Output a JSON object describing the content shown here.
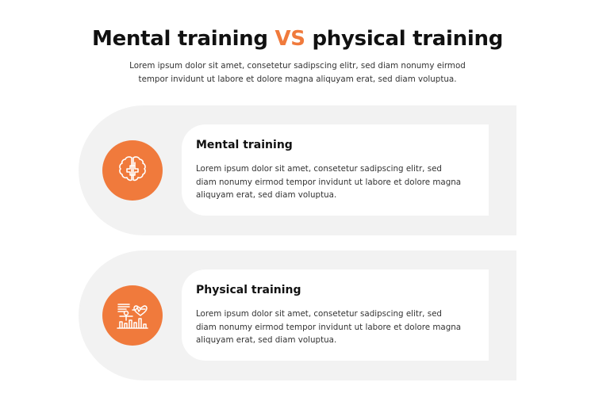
{
  "header": {
    "title_part1": "Mental training ",
    "title_vs": "VS",
    "title_part2": " physical training",
    "subtitle": "Lorem ipsum dolor sit amet, consetetur sadipscing elitr, sed diam nonumy eirmod tempor invidunt ut labore et dolore magna aliquyam erat, sed diam voluptua."
  },
  "colors": {
    "accent": "#f07a3c",
    "panel": "#f2f2f2"
  },
  "items": [
    {
      "icon": "brain-icon",
      "title": "Mental training",
      "text": "Lorem ipsum dolor sit amet, consetetur sadipscing elitr, sed diam nonumy eirmod tempor invidunt ut labore et dolore magna aliquyam erat, sed diam voluptua."
    },
    {
      "icon": "fitness-chart-icon",
      "title": "Physical training",
      "text": "Lorem ipsum dolor sit amet, consetetur sadipscing elitr, sed diam nonumy eirmod tempor invidunt ut labore et dolore magna aliquyam erat, sed diam voluptua."
    }
  ]
}
